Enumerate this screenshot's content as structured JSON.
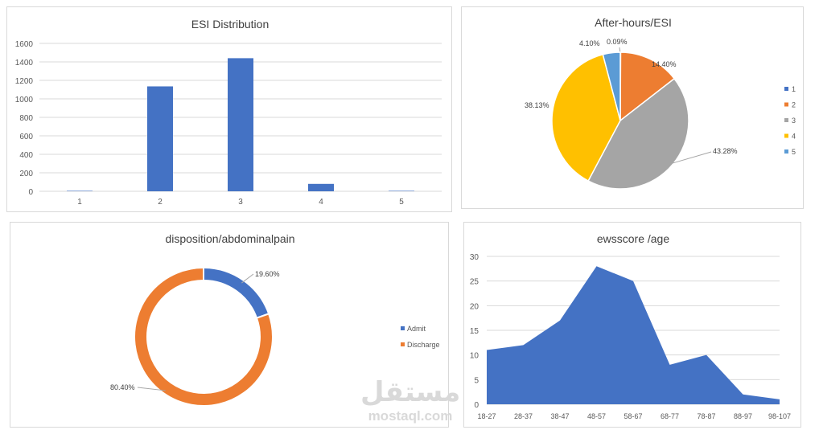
{
  "colors": {
    "blue": "#4472c4",
    "orange": "#ed7d31",
    "gray": "#a5a5a5",
    "yellow": "#ffc000",
    "lightblue": "#5b9bd5",
    "grid": "#d9d9d9",
    "text": "#595959"
  },
  "watermark": {
    "arabic": "مستقل",
    "latin": "mostaql.com"
  },
  "chart_data": [
    {
      "type": "bar",
      "title": "ESI Distribution",
      "categories": [
        "1",
        "2",
        "3",
        "4",
        "5"
      ],
      "values": [
        5,
        1135,
        1440,
        80,
        5
      ],
      "ylim": [
        0,
        1600
      ],
      "yticks": [
        "0",
        "200",
        "400",
        "600",
        "800",
        "1000",
        "1200",
        "1400",
        "1600"
      ],
      "grid": true,
      "legend": "none"
    },
    {
      "type": "pie",
      "title": "After-hours/ESI",
      "labels": [
        "1",
        "2",
        "3",
        "4",
        "5"
      ],
      "values": [
        0.09,
        14.4,
        43.28,
        38.13,
        4.1
      ],
      "value_labels": [
        "0.09%",
        "14.40%",
        "43.28%",
        "38.13%",
        "4.10%"
      ],
      "legend": "right"
    },
    {
      "type": "pie",
      "subtype": "doughnut",
      "title": "disposition/abdominalpain",
      "labels": [
        "Admit",
        "Discharge"
      ],
      "values": [
        19.6,
        80.4
      ],
      "value_labels": [
        "19.60%",
        "80.40%"
      ],
      "legend": "right"
    },
    {
      "type": "area",
      "title": "ewsscore /age",
      "categories": [
        "18-27",
        "28-37",
        "38-47",
        "48-57",
        "58-67",
        "68-77",
        "78-87",
        "88-97",
        "98-107"
      ],
      "values": [
        11,
        12,
        17,
        28,
        25,
        8,
        10,
        2,
        1
      ],
      "ylim": [
        0,
        30
      ],
      "yticks": [
        "0",
        "5",
        "10",
        "15",
        "20",
        "25",
        "30"
      ],
      "grid": true,
      "legend": "none"
    }
  ]
}
